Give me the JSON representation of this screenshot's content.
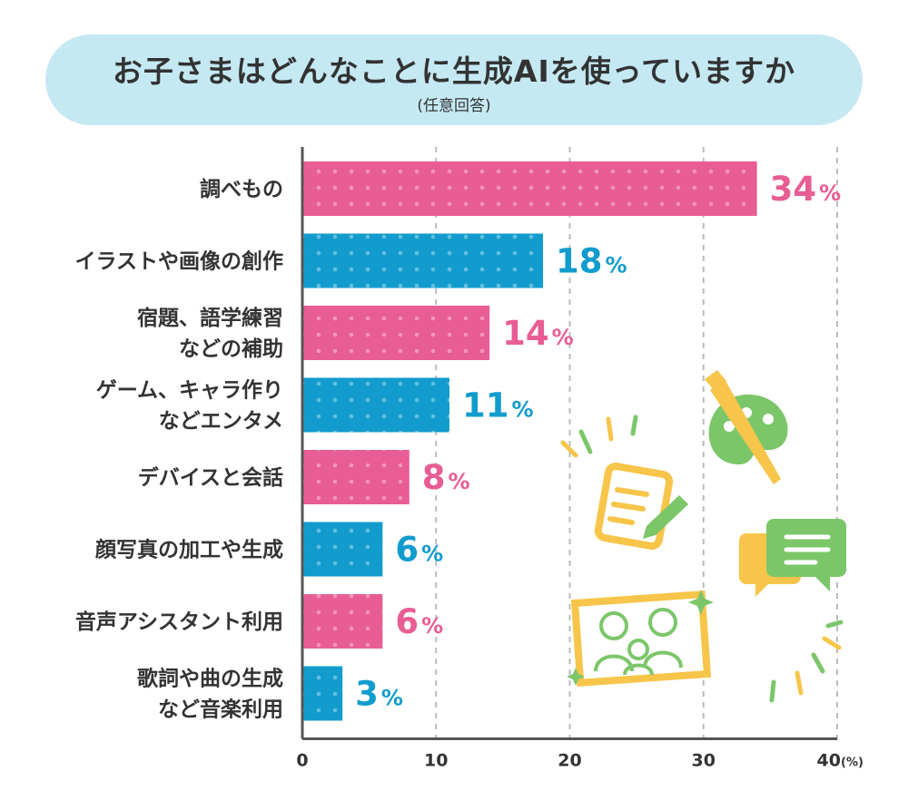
{
  "header": {
    "title": "お子さまはどんなことに生成AIを使っていますか",
    "subtitle": "(任意回答)"
  },
  "colors": {
    "pink": "#e85d94",
    "blue": "#129ccd",
    "title_bg": "#c5e9f3"
  },
  "chart_data": {
    "type": "bar",
    "orientation": "horizontal",
    "categories": [
      [
        "調べもの"
      ],
      [
        "イラストや画像の創作"
      ],
      [
        "宿題、語学練習",
        "などの補助"
      ],
      [
        "ゲーム、キャラ作り",
        "などエンタメ"
      ],
      [
        "デバイスと会話"
      ],
      [
        "顔写真の加工や生成"
      ],
      [
        "音声アシスタント利用"
      ],
      [
        "歌詞や曲の生成",
        "など音楽利用"
      ]
    ],
    "values": [
      34,
      18,
      14,
      11,
      8,
      6,
      6,
      3
    ],
    "value_suffix": "%",
    "bar_colors": [
      "pink",
      "blue",
      "pink",
      "blue",
      "pink",
      "blue",
      "pink",
      "blue"
    ],
    "xlim": [
      0,
      40
    ],
    "xticks": [
      "0",
      "10",
      "20",
      "30",
      "40"
    ],
    "x_unit": "(%)",
    "grid": true,
    "decorations": [
      "palette-icon",
      "notepad-pencil-icon",
      "speech-bubbles-icon",
      "family-photo-icon"
    ]
  }
}
